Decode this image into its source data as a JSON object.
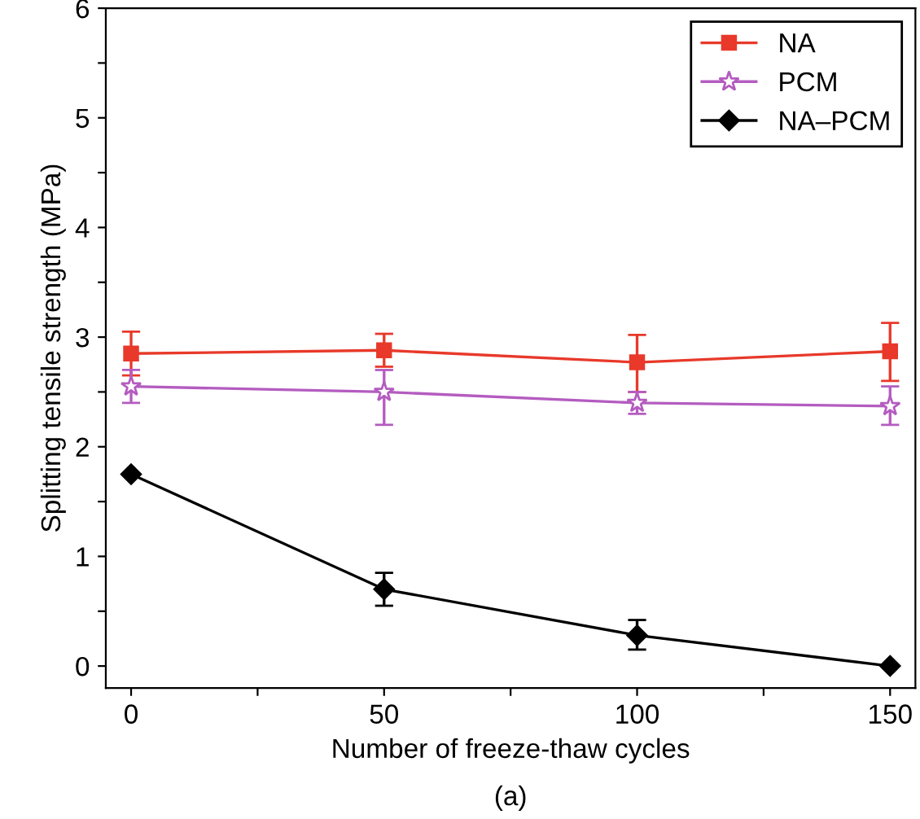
{
  "chart_data": {
    "type": "line",
    "xlabel": "Number of freeze-thaw cycles",
    "ylabel": "Splitting tensile strength (MPa)",
    "annotations": [
      "(a)"
    ],
    "x": [
      0,
      50,
      100,
      150
    ],
    "series": [
      {
        "name": "NA",
        "color": "#e8392a",
        "marker": "square",
        "values": [
          2.85,
          2.88,
          2.77,
          2.87
        ],
        "errors": [
          [
            2.65,
            3.05
          ],
          [
            2.73,
            3.03
          ],
          [
            2.5,
            3.02
          ],
          [
            2.6,
            3.13
          ]
        ]
      },
      {
        "name": "PCM",
        "color": "#b45cc0",
        "marker": "star",
        "values": [
          2.55,
          2.5,
          2.4,
          2.37
        ],
        "errors": [
          [
            2.4,
            2.7
          ],
          [
            2.2,
            2.7
          ],
          [
            2.3,
            2.5
          ],
          [
            2.2,
            2.55
          ]
        ]
      },
      {
        "name": "NA–PCM",
        "color": "#000000",
        "marker": "diamond",
        "values": [
          1.75,
          0.7,
          0.28,
          0.0
        ],
        "errors": [
          null,
          [
            0.55,
            0.85
          ],
          [
            0.15,
            0.42
          ],
          null
        ]
      }
    ],
    "xlim": [
      -5,
      155
    ],
    "xticks": [
      0,
      {
        "value": 25,
        "label": null
      },
      50,
      {
        "value": 75,
        "label": null
      },
      100,
      {
        "value": 125,
        "label": null
      },
      150
    ],
    "ylim": [
      -0.2,
      6
    ],
    "yticks": [
      0,
      {
        "value": 0.5,
        "label": null
      },
      1,
      {
        "value": 1.5,
        "label": null
      },
      2,
      {
        "value": 2.5,
        "label": null
      },
      3,
      {
        "value": 3.5,
        "label": null
      },
      4,
      {
        "value": 4.5,
        "label": null
      },
      5,
      {
        "value": 5.5,
        "label": null
      },
      6
    ],
    "legend": "top right",
    "grid": false,
    "line_style": "solid"
  }
}
